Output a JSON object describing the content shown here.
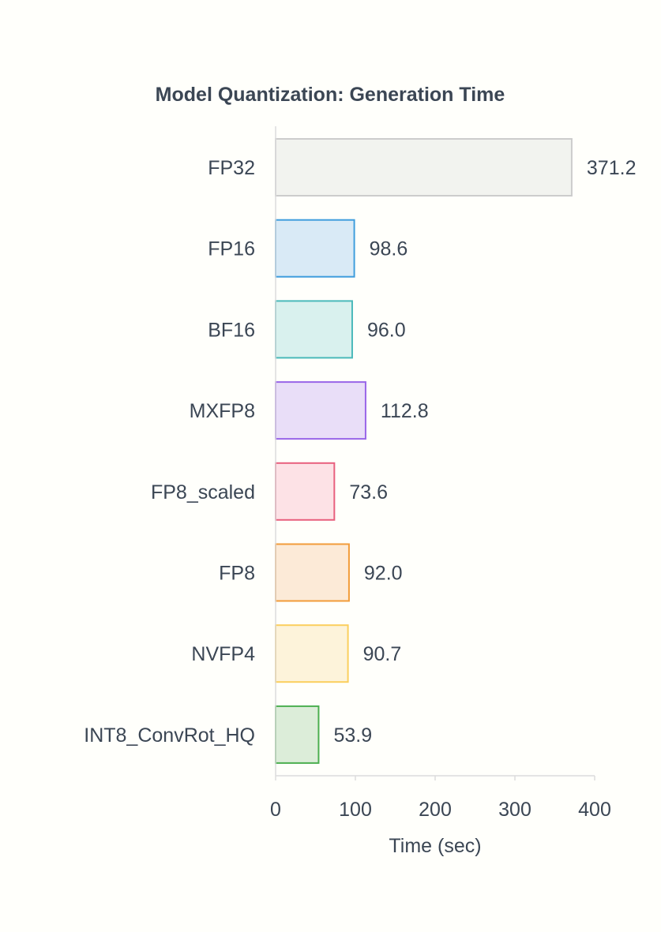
{
  "chart_data": {
    "type": "bar",
    "orientation": "horizontal",
    "title": "Model Quantization: Generation Time",
    "xlabel": "Time (sec)",
    "ylabel": "",
    "xlim": [
      0,
      400
    ],
    "xticks": [
      0,
      100,
      200,
      300,
      400
    ],
    "grid": false,
    "categories": [
      "FP32",
      "FP16",
      "BF16",
      "MXFP8",
      "FP8_scaled",
      "FP8",
      "NVFP4",
      "INT8_ConvRot_HQ"
    ],
    "values": [
      371.2,
      98.6,
      96.0,
      112.8,
      73.6,
      92.0,
      90.7,
      53.9
    ],
    "value_labels": [
      "371.2",
      "98.6",
      "96.0",
      "112.8",
      "73.6",
      "92.0",
      "90.7",
      "53.9"
    ],
    "colors": {
      "fills": [
        "#f2f3ef",
        "#d9eaf6",
        "#d9f1ee",
        "#e9def8",
        "#fde2e6",
        "#fcead7",
        "#fdf3da",
        "#dcedd9"
      ],
      "strokes": [
        "#cccccc",
        "#3f9ddd",
        "#4ab9ba",
        "#9966e8",
        "#e8607e",
        "#f29c3a",
        "#fbcf5e",
        "#4caf50"
      ],
      "axis": "#dcdcdc",
      "text": "#3b4654",
      "background": "#fffffb"
    }
  }
}
